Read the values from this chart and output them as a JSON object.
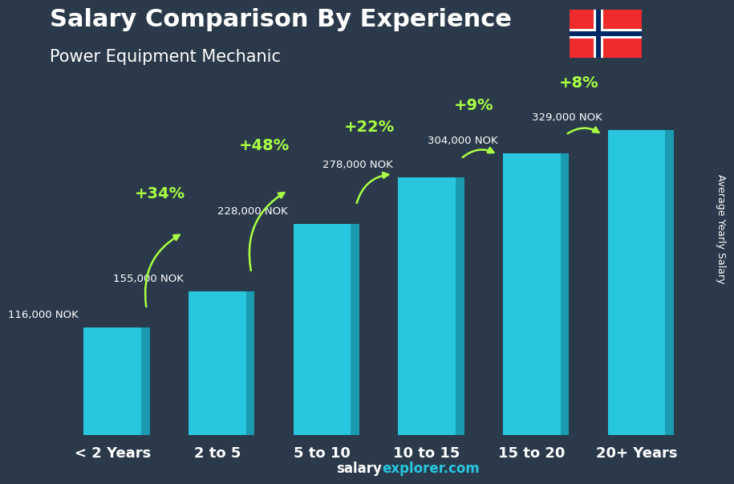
{
  "title": "Salary Comparison By Experience",
  "subtitle": "Power Equipment Mechanic",
  "categories": [
    "< 2 Years",
    "2 to 5",
    "5 to 10",
    "10 to 15",
    "15 to 20",
    "20+ Years"
  ],
  "values": [
    116000,
    155000,
    228000,
    278000,
    304000,
    329000
  ],
  "value_labels": [
    "116,000 NOK",
    "155,000 NOK",
    "228,000 NOK",
    "278,000 NOK",
    "304,000 NOK",
    "329,000 NOK"
  ],
  "pct_changes": [
    "+34%",
    "+48%",
    "+22%",
    "+9%",
    "+8%"
  ],
  "bar_color_face": "#29C6E0",
  "bar_color_dark": "#1A9BB0",
  "background_color": "#1a1a2e",
  "title_color": "#FFFFFF",
  "subtitle_color": "#FFFFFF",
  "label_color": "#FFFFFF",
  "pct_color": "#AAFF44",
  "ylabel": "Average Yearly Salary",
  "watermark": "salaryexplorer.com",
  "ylim_max": 400000
}
